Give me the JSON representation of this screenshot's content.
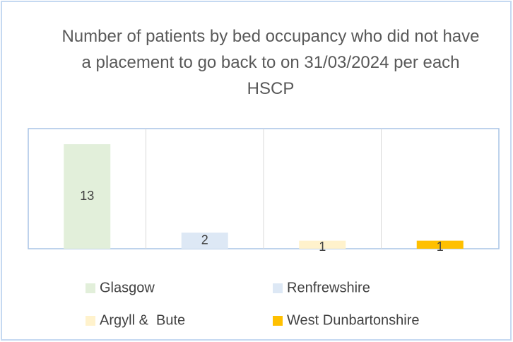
{
  "chart_data": {
    "type": "bar",
    "title": "Number of patients by bed occupancy who did not have a placement to go back to on 31/03/2024 per each HSCP",
    "series": [
      {
        "name": "Glasgow",
        "color": "#e2efda",
        "values": [
          13
        ]
      },
      {
        "name": "Renfrewshire",
        "color": "#dde8f5",
        "values": [
          2
        ]
      },
      {
        "name": "Argyll &  Bute",
        "color": "#fff2cc",
        "values": [
          1
        ]
      },
      {
        "name": "West Dunbartonshire",
        "color": "#ffc000",
        "values": [
          1
        ]
      }
    ],
    "grid": true
  }
}
